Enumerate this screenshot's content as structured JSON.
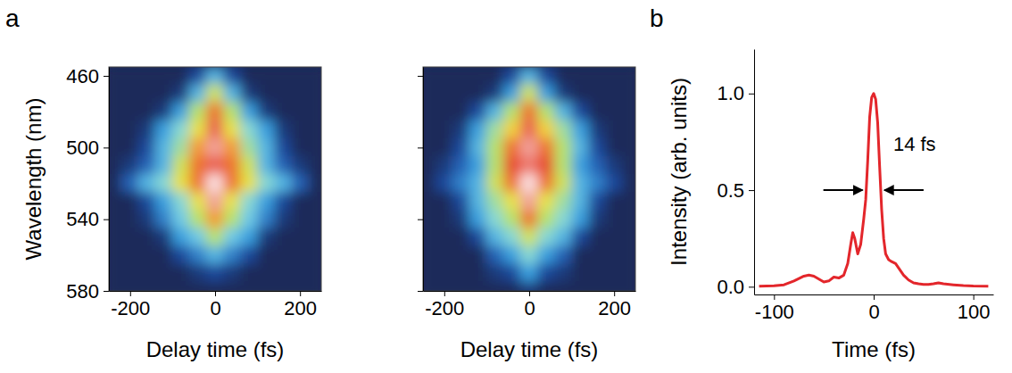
{
  "figure": {
    "panel_labels": [
      "a",
      "b"
    ]
  },
  "chart_data": [
    {
      "type": "heatmap",
      "x_label": "Delay time (fs)",
      "y_label": "Wavelength (nm)",
      "xlim": [
        -250,
        250
      ],
      "ylim": [
        580,
        455
      ],
      "xticks": [
        -200,
        0,
        200
      ],
      "yticks": [
        460,
        500,
        540,
        580
      ],
      "zlim": [
        0,
        1
      ],
      "x": [
        -240,
        -200,
        -160,
        -120,
        -80,
        -40,
        0,
        40,
        80,
        120,
        160,
        200,
        240
      ],
      "y": [
        460,
        470,
        480,
        490,
        500,
        510,
        520,
        530,
        540,
        550,
        560,
        570,
        580
      ],
      "z": [
        [
          0,
          0,
          0,
          0,
          0,
          0.1,
          0.3,
          0.1,
          0,
          0,
          0,
          0,
          0
        ],
        [
          0,
          0,
          0,
          0,
          0.05,
          0.3,
          0.55,
          0.3,
          0.05,
          0,
          0,
          0,
          0
        ],
        [
          0,
          0,
          0,
          0.05,
          0.25,
          0.5,
          0.8,
          0.5,
          0.25,
          0.05,
          0,
          0,
          0
        ],
        [
          0,
          0,
          0.05,
          0.25,
          0.4,
          0.6,
          0.9,
          0.6,
          0.4,
          0.25,
          0.05,
          0,
          0
        ],
        [
          0,
          0,
          0.1,
          0.3,
          0.45,
          0.75,
          0.95,
          0.75,
          0.45,
          0.3,
          0.1,
          0,
          0
        ],
        [
          0,
          0.05,
          0.15,
          0.3,
          0.55,
          0.8,
          0.9,
          0.8,
          0.55,
          0.3,
          0.15,
          0.05,
          0
        ],
        [
          0,
          0.15,
          0.3,
          0.4,
          0.6,
          0.8,
          1.0,
          0.8,
          0.6,
          0.4,
          0.3,
          0.15,
          0
        ],
        [
          0,
          0,
          0.1,
          0.25,
          0.4,
          0.6,
          0.95,
          0.6,
          0.4,
          0.25,
          0.1,
          0,
          0
        ],
        [
          0,
          0,
          0.05,
          0.2,
          0.35,
          0.5,
          0.75,
          0.5,
          0.35,
          0.2,
          0.05,
          0,
          0
        ],
        [
          0,
          0,
          0,
          0.05,
          0.25,
          0.35,
          0.5,
          0.35,
          0.25,
          0.05,
          0,
          0,
          0
        ],
        [
          0,
          0,
          0,
          0,
          0.1,
          0.2,
          0.3,
          0.2,
          0.1,
          0,
          0,
          0,
          0
        ],
        [
          0,
          0,
          0,
          0,
          0,
          0.05,
          0.1,
          0.05,
          0,
          0,
          0,
          0,
          0
        ],
        [
          0,
          0,
          0,
          0,
          0,
          0,
          0,
          0,
          0,
          0,
          0,
          0,
          0
        ]
      ]
    },
    {
      "type": "heatmap",
      "x_label": "Delay time (fs)",
      "tick_labels": "x",
      "xlim": [
        -250,
        250
      ],
      "ylim": [
        580,
        455
      ],
      "xticks": [
        -200,
        0,
        200
      ],
      "yticks": [
        460,
        500,
        540,
        580
      ],
      "zlim": [
        0,
        1
      ],
      "x": [
        -240,
        -200,
        -160,
        -120,
        -80,
        -40,
        0,
        40,
        80,
        120,
        160,
        200,
        240
      ],
      "y": [
        460,
        470,
        480,
        490,
        500,
        510,
        520,
        530,
        540,
        550,
        560,
        570,
        580
      ],
      "z": [
        [
          0,
          0,
          0,
          0,
          0,
          0.1,
          0.3,
          0.1,
          0,
          0,
          0,
          0,
          0
        ],
        [
          0,
          0,
          0,
          0,
          0.05,
          0.25,
          0.55,
          0.25,
          0.05,
          0,
          0,
          0,
          0
        ],
        [
          0,
          0,
          0,
          0.1,
          0.3,
          0.5,
          0.8,
          0.5,
          0.3,
          0.1,
          0,
          0,
          0
        ],
        [
          0,
          0,
          0.05,
          0.25,
          0.45,
          0.65,
          0.9,
          0.65,
          0.45,
          0.25,
          0.05,
          0,
          0
        ],
        [
          0,
          0,
          0.1,
          0.3,
          0.5,
          0.8,
          0.95,
          0.8,
          0.5,
          0.3,
          0.1,
          0,
          0
        ],
        [
          0,
          0.05,
          0.15,
          0.25,
          0.5,
          0.85,
          0.92,
          0.85,
          0.5,
          0.25,
          0.15,
          0.05,
          0
        ],
        [
          0,
          0.1,
          0.2,
          0.3,
          0.55,
          0.8,
          1.0,
          0.8,
          0.55,
          0.3,
          0.2,
          0.1,
          0
        ],
        [
          0,
          0,
          0.1,
          0.3,
          0.45,
          0.6,
          0.95,
          0.6,
          0.45,
          0.3,
          0.1,
          0,
          0
        ],
        [
          0,
          0,
          0.05,
          0.25,
          0.4,
          0.5,
          0.8,
          0.5,
          0.4,
          0.25,
          0.05,
          0,
          0
        ],
        [
          0,
          0,
          0,
          0.1,
          0.3,
          0.4,
          0.55,
          0.4,
          0.3,
          0.1,
          0,
          0,
          0
        ],
        [
          0,
          0,
          0,
          0,
          0.15,
          0.25,
          0.4,
          0.25,
          0.15,
          0,
          0,
          0,
          0
        ],
        [
          0,
          0,
          0,
          0,
          0.05,
          0.1,
          0.25,
          0.1,
          0.05,
          0,
          0,
          0,
          0
        ],
        [
          0,
          0,
          0,
          0,
          0,
          0,
          0.05,
          0,
          0,
          0,
          0,
          0,
          0
        ]
      ]
    },
    {
      "type": "line",
      "x_label": "Time (fs)",
      "y_label": "Intensity (arb. units)",
      "xlim": [
        -120,
        120
      ],
      "ylim": [
        -0.04,
        1.23
      ],
      "xticks": [
        -100,
        0,
        100
      ],
      "yticks": [
        {
          "value": 0,
          "label": "0.0"
        },
        {
          "value": 0.5,
          "label": "0.5"
        },
        {
          "value": 1,
          "label": "1.0"
        }
      ],
      "color": "#e3262b",
      "x": [
        -115,
        -100,
        -90,
        -80,
        -70,
        -65,
        -60,
        -55,
        -50,
        -45,
        -40,
        -35,
        -30,
        -26,
        -23,
        -21,
        -19,
        -16,
        -13,
        -10,
        -8,
        -6,
        -4,
        -2,
        0,
        2,
        4,
        6,
        8,
        10,
        12,
        15,
        18,
        22,
        26,
        30,
        35,
        40,
        45,
        50,
        55,
        60,
        65,
        70,
        80,
        90,
        100,
        115
      ],
      "values": [
        0.003,
        0.005,
        0.01,
        0.03,
        0.055,
        0.06,
        0.055,
        0.04,
        0.025,
        0.03,
        0.05,
        0.045,
        0.06,
        0.12,
        0.22,
        0.28,
        0.25,
        0.17,
        0.22,
        0.35,
        0.45,
        0.65,
        0.88,
        0.98,
        1.0,
        0.97,
        0.85,
        0.62,
        0.4,
        0.25,
        0.17,
        0.14,
        0.13,
        0.12,
        0.09,
        0.06,
        0.035,
        0.02,
        0.015,
        0.012,
        0.012,
        0.015,
        0.02,
        0.015,
        0.01,
        0.006,
        0.004,
        0.003
      ],
      "annotations": [
        {
          "text": "14 fs"
        }
      ]
    }
  ]
}
